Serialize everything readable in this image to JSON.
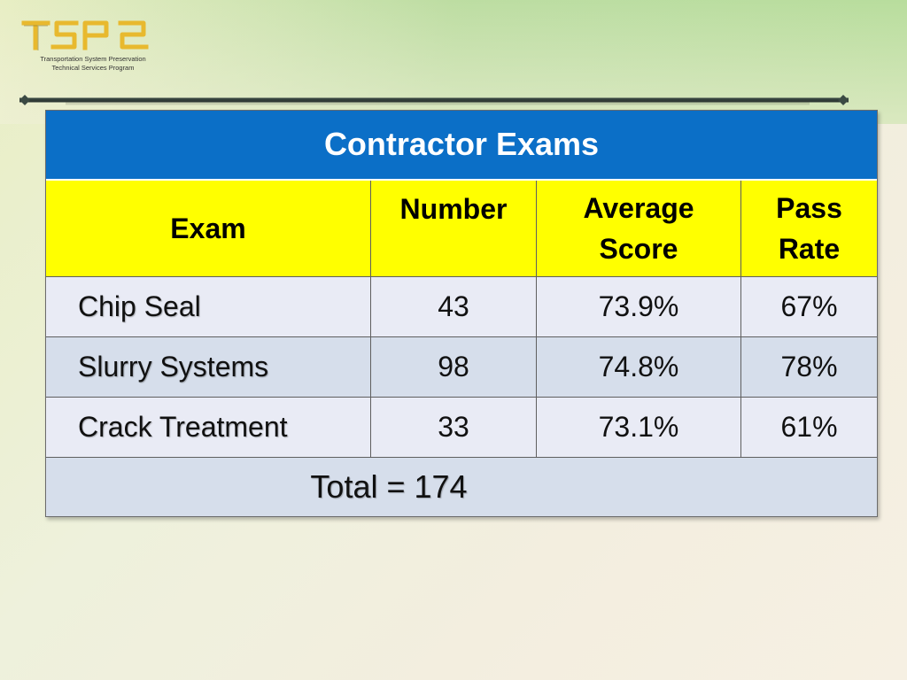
{
  "logo": {
    "mark_text": "TSP2",
    "line1": "Transportation System Preservation",
    "line2": "Technical Services Program",
    "color": "#e8b92e"
  },
  "table": {
    "title": "Contractor Exams",
    "title_bg": "#0b6fc7",
    "header_bg": "#ffff00",
    "headers": {
      "exam": "Exam",
      "number": "Number",
      "average_score_line1": "Average",
      "average_score_line2": "Score",
      "pass_rate_line1": "Pass",
      "pass_rate_line2": "Rate"
    },
    "rows": [
      {
        "exam": "Chip Seal",
        "number": "43",
        "average_score": "73.9%",
        "pass_rate": "67%"
      },
      {
        "exam": "Slurry Systems",
        "number": "98",
        "average_score": "74.8%",
        "pass_rate": "78%"
      },
      {
        "exam": "Crack Treatment",
        "number": "33",
        "average_score": "73.1%",
        "pass_rate": "61%"
      }
    ],
    "total": "Total = 174"
  }
}
